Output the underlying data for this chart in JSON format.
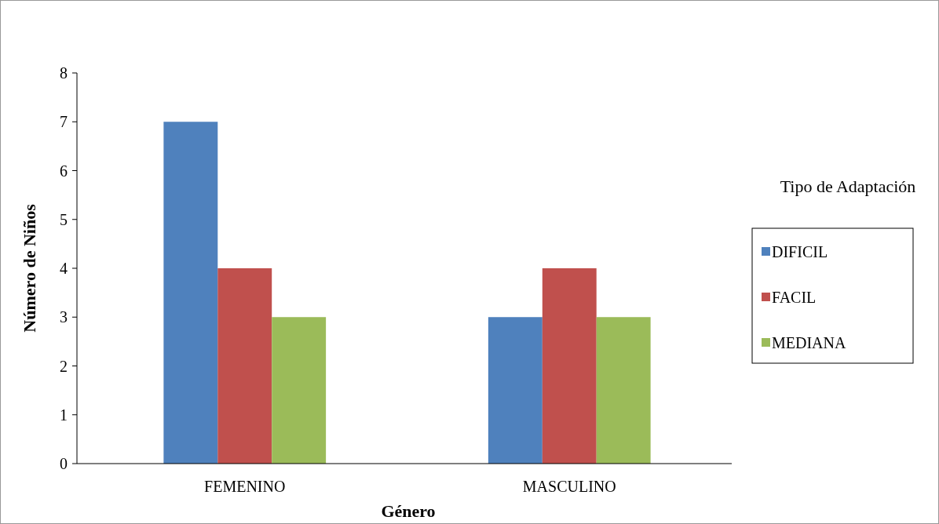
{
  "chart_data": {
    "type": "bar",
    "xlabel": "Género",
    "ylabel": "Número de Niños",
    "legend_title": "Tipo de Adaptación",
    "categories": [
      "FEMENINO",
      "MASCULINO"
    ],
    "series": [
      {
        "name": "DIFICIL",
        "color": "#4f81bd",
        "values": [
          7,
          3
        ]
      },
      {
        "name": "FACIL",
        "color": "#c0504d",
        "values": [
          4,
          4
        ]
      },
      {
        "name": "MEDIANA",
        "color": "#9bbb59",
        "values": [
          3,
          3
        ]
      }
    ],
    "ylim": [
      0,
      8
    ],
    "yticks": [
      0,
      1,
      2,
      3,
      4,
      5,
      6,
      7,
      8
    ],
    "grid": false,
    "legend": "right"
  }
}
